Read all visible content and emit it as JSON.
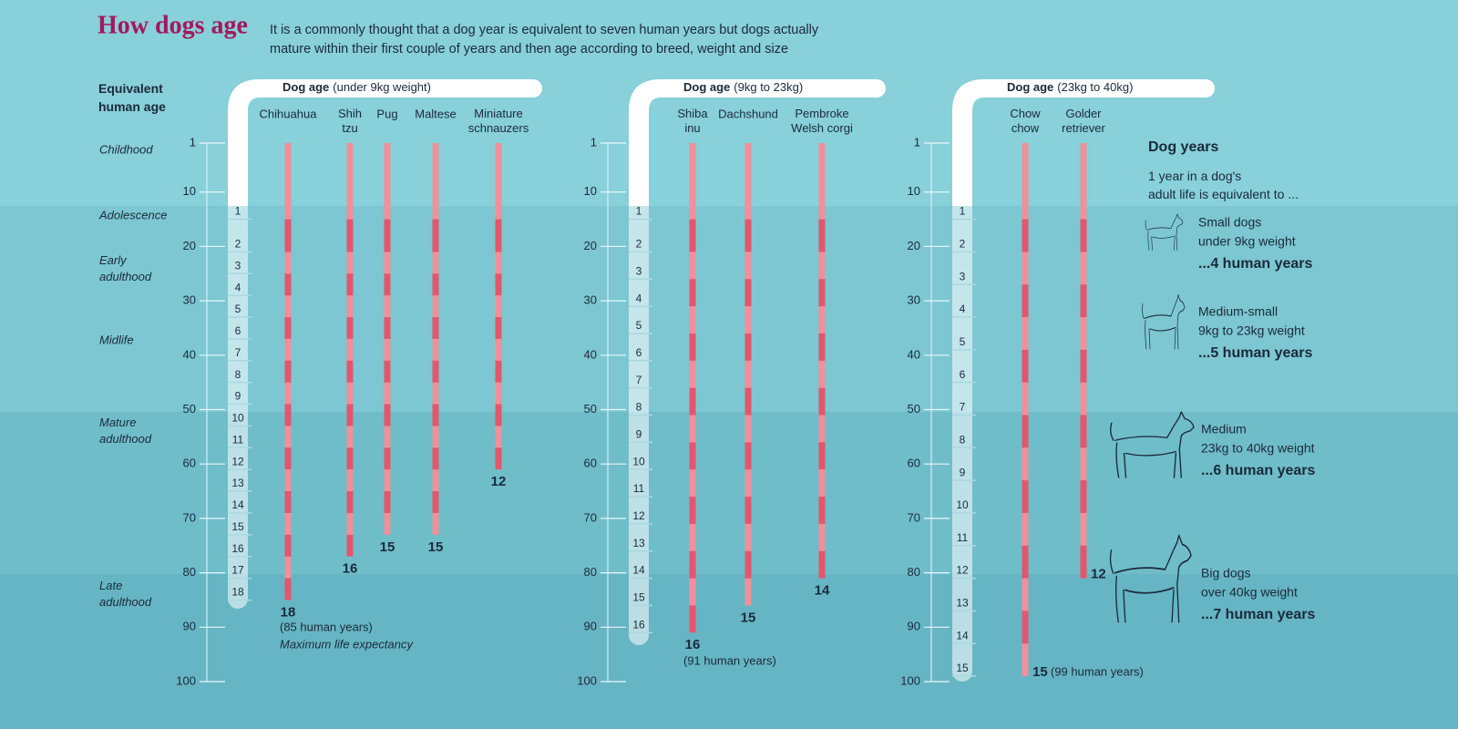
{
  "header": {
    "title": "How dogs age",
    "description": "It is a commonly thought that a dog year is equivalent to seven human years but dogs actually\nmature within their first couple of years and then age according to breed, weight and size"
  },
  "axis_title": "Equivalent\nhuman age",
  "life_stages": [
    "Childhood",
    "Adolescence",
    "Early\nadulthood",
    "Midlife",
    "Mature\nadulthood",
    "Late\nadulthood"
  ],
  "chart_data": [
    {
      "type": "bar",
      "title": "Dog age",
      "subtitle": "(under 9kg weight)",
      "categories": [
        "Chihuahua",
        "Shih\ntzu",
        "Pug",
        "Maltese",
        "Miniature\nschnauzers"
      ],
      "values": [
        18,
        16,
        15,
        15,
        12
      ],
      "ylim": [
        1,
        100
      ],
      "yticks": [
        1,
        10,
        20,
        30,
        40,
        50,
        60,
        70,
        80,
        90,
        100
      ],
      "dog_scale": {
        "dog_ages": [
          1,
          2,
          3,
          4,
          5,
          6,
          7,
          8,
          9,
          10,
          11,
          12,
          13,
          14,
          15,
          16,
          17,
          18
        ],
        "human_ages": [
          15,
          21,
          25,
          29,
          33,
          37,
          41,
          45,
          49,
          53,
          57,
          61,
          65,
          69,
          73,
          77,
          81,
          85
        ]
      },
      "annotations": [
        "(85 human years)",
        "Maximum life expectancy"
      ]
    },
    {
      "type": "bar",
      "title": "Dog age",
      "subtitle": "(9kg to 23kg)",
      "categories": [
        "Shiba\ninu",
        "Dachshund",
        "Pembroke\nWelsh corgi"
      ],
      "values": [
        16,
        15,
        14
      ],
      "ylim": [
        1,
        100
      ],
      "yticks": [
        1,
        10,
        20,
        30,
        40,
        50,
        60,
        70,
        80,
        90,
        100
      ],
      "dog_scale": {
        "dog_ages": [
          1,
          2,
          3,
          4,
          5,
          6,
          7,
          8,
          9,
          10,
          11,
          12,
          13,
          14,
          15,
          16
        ],
        "human_ages": [
          15,
          21,
          26,
          31,
          36,
          41,
          46,
          51,
          56,
          61,
          66,
          71,
          76,
          81,
          86,
          91
        ]
      },
      "annotations": [
        "(91 human years)"
      ]
    },
    {
      "type": "bar",
      "title": "Dog age",
      "subtitle": "(23kg to 40kg)",
      "categories": [
        "Chow\nchow",
        "Golder\nretriever"
      ],
      "values": [
        15,
        12
      ],
      "ylim": [
        1,
        100
      ],
      "yticks": [
        1,
        10,
        20,
        30,
        40,
        50,
        60,
        70,
        80,
        90,
        100
      ],
      "dog_scale": {
        "dog_ages": [
          1,
          2,
          3,
          4,
          5,
          6,
          7,
          8,
          9,
          10,
          11,
          12,
          13,
          14,
          15
        ],
        "human_ages": [
          15,
          21,
          27,
          33,
          39,
          45,
          51,
          57,
          63,
          69,
          75,
          81,
          87,
          93,
          99
        ]
      },
      "annotations": [
        "(99 human years)"
      ]
    }
  ],
  "legend": {
    "title": "Dog years",
    "note": "1 year in a dog's\nadult life is equivalent to ...",
    "items": [
      {
        "name": "Small dogs",
        "weight": "under 9kg weight",
        "equivalent": "...4 human years"
      },
      {
        "name": "Medium-small",
        "weight": "9kg to 23kg weight",
        "equivalent": "...5 human years"
      },
      {
        "name": "Medium",
        "weight": "23kg to 40kg weight",
        "equivalent": "...6 human years"
      },
      {
        "name": "Big dogs",
        "weight": "over 40kg weight",
        "equivalent": "...7 human years"
      }
    ]
  }
}
